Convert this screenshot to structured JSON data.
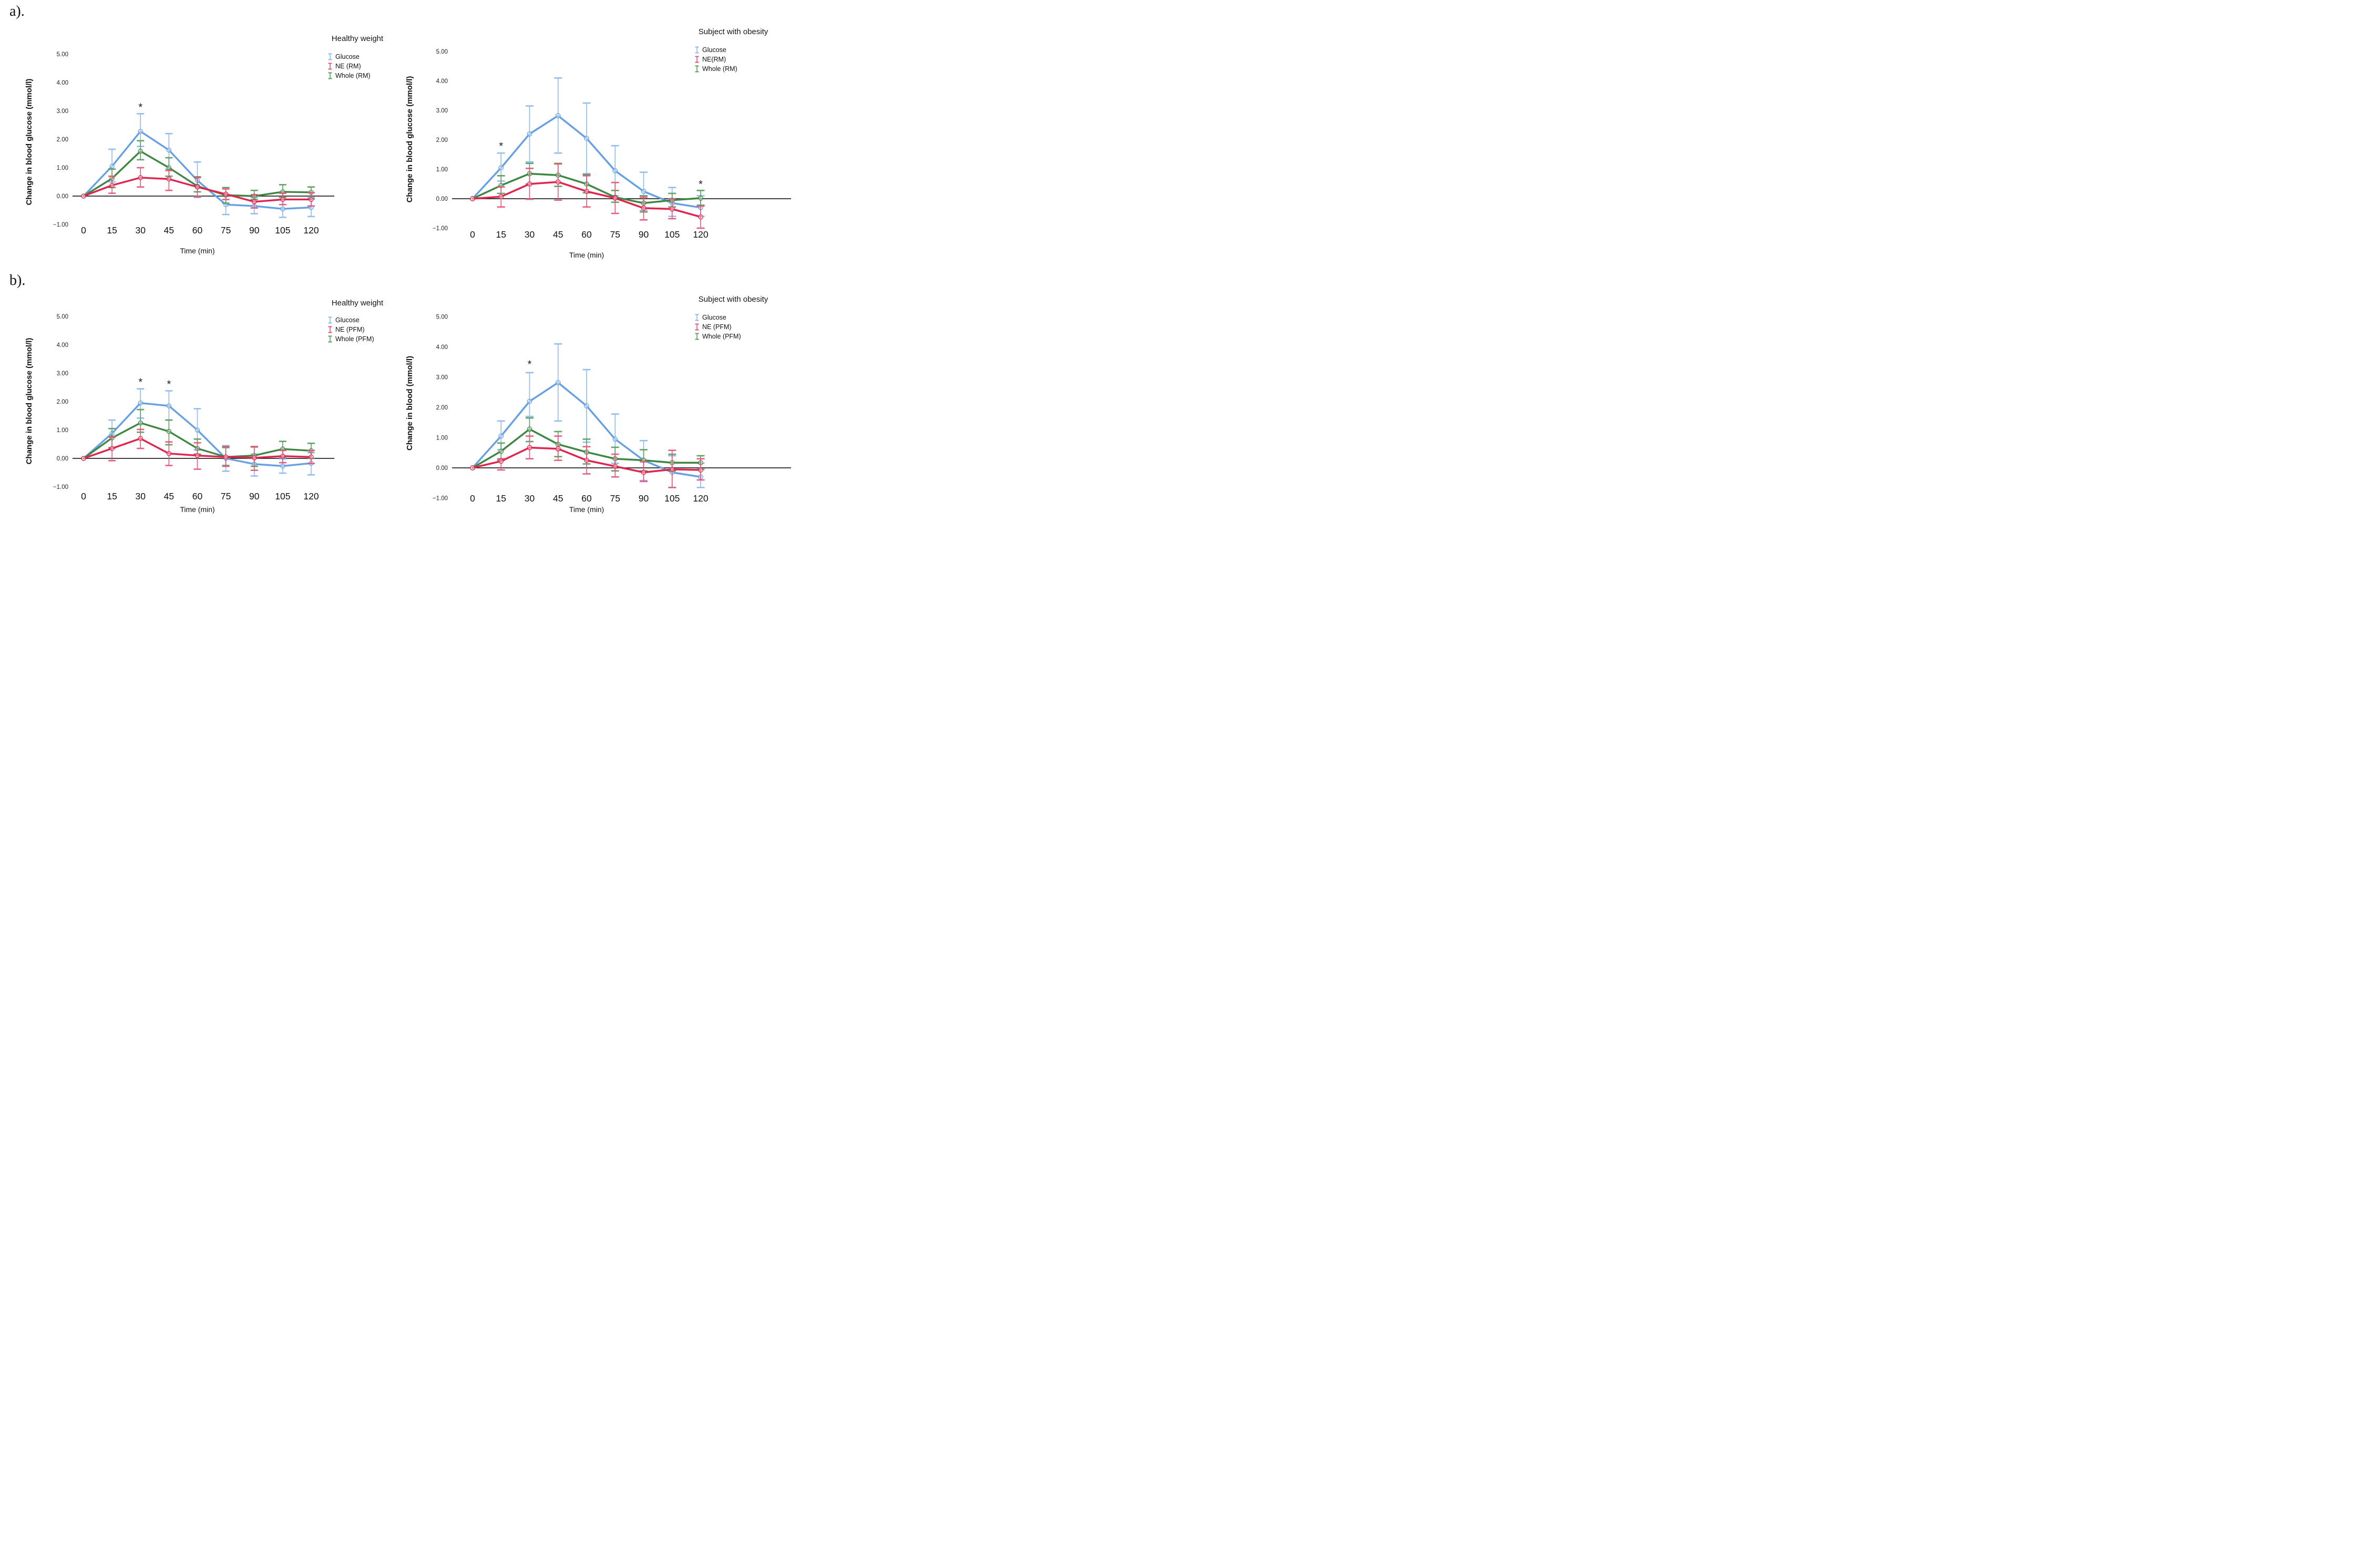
{
  "page": {
    "panel_a": "a).",
    "panel_b": "b)."
  },
  "colors": {
    "glucose_line": "#66A0E2",
    "glucose_error": "#8CBBF0",
    "ne_line": "#E0234F",
    "ne_error": "#E8557C",
    "whole_line": "#3E8742",
    "whole_error": "#58A05C",
    "zero_line": "#000000",
    "text": "#111111"
  },
  "chart_data": [
    {
      "type": "line",
      "panel": "a",
      "title": "Healthy weight",
      "xlabel": "Time (min)",
      "ylabel": "Change in blood glucose (mmol/l)",
      "x": [
        0,
        15,
        30,
        45,
        60,
        75,
        90,
        105,
        120
      ],
      "yticks": [
        5,
        4,
        3,
        2,
        1,
        0,
        -1
      ],
      "ytick_labels": [
        "5.00",
        "4.00",
        "3.00",
        "2.00",
        "1.00",
        "0.00",
        "−1.00"
      ],
      "ylim": [
        -1.6,
        5.4
      ],
      "grid": false,
      "zero_line": true,
      "legend_position": "top-right",
      "series": [
        {
          "name": "Glucose",
          "color": "#66A0E2",
          "error_color": "#8CBBF0",
          "values": [
            0,
            1.05,
            2.28,
            1.62,
            0.55,
            -0.3,
            -0.35,
            -0.45,
            -0.4
          ],
          "upper": [
            0,
            1.65,
            2.9,
            2.2,
            1.2,
            0.05,
            -0.05,
            -0.12,
            -0.05
          ],
          "lower": [
            0,
            0.5,
            1.75,
            0.95,
            -0.05,
            -0.65,
            -0.62,
            -0.75,
            -0.72
          ]
        },
        {
          "name": "NE (RM)",
          "color": "#E0234F",
          "error_color": "#E8557C",
          "values": [
            0,
            0.38,
            0.65,
            0.6,
            0.32,
            0.07,
            -0.2,
            -0.12,
            -0.12
          ],
          "upper": [
            0,
            0.7,
            1.0,
            0.9,
            0.65,
            0.25,
            0.05,
            0.1,
            0.12
          ],
          "lower": [
            0,
            0.1,
            0.32,
            0.2,
            -0.02,
            -0.12,
            -0.42,
            -0.3,
            -0.35
          ]
        },
        {
          "name": "Whole (RM)",
          "color": "#3E8742",
          "error_color": "#58A05C",
          "values": [
            0,
            0.62,
            1.58,
            1.0,
            0.35,
            0.03,
            0.0,
            0.15,
            0.13
          ],
          "upper": [
            0,
            0.95,
            1.95,
            1.35,
            0.68,
            0.3,
            0.2,
            0.4,
            0.32
          ],
          "lower": [
            0,
            0.3,
            1.28,
            0.7,
            0.15,
            -0.25,
            -0.12,
            -0.05,
            -0.1
          ]
        }
      ],
      "annotations": [
        {
          "x": 30,
          "y": 3.12,
          "text": "*"
        }
      ]
    },
    {
      "type": "line",
      "panel": "a",
      "title": "Subject with obesity",
      "xlabel": "Time (min)",
      "ylabel": "Change in blood glucose (mmol/l)",
      "x": [
        0,
        15,
        30,
        45,
        60,
        75,
        90,
        105,
        120
      ],
      "yticks": [
        5,
        4,
        3,
        2,
        1,
        0,
        -1
      ],
      "ytick_labels": [
        "5.00",
        "4.00",
        "3.00",
        "2.00",
        "1.00",
        "0.00",
        "−1.00"
      ],
      "ylim": [
        -1.6,
        5.4
      ],
      "grid": false,
      "zero_line": true,
      "legend_position": "top-right",
      "series": [
        {
          "name": "Glucose",
          "color": "#66A0E2",
          "error_color": "#8CBBF0",
          "values": [
            0,
            1.05,
            2.2,
            2.82,
            2.05,
            0.95,
            0.25,
            -0.15,
            -0.3
          ],
          "upper": [
            0,
            1.55,
            3.15,
            4.1,
            3.25,
            1.8,
            0.9,
            0.38,
            0.1
          ],
          "lower": [
            0,
            0.6,
            1.25,
            1.55,
            0.85,
            0.1,
            -0.4,
            -0.6,
            -0.6
          ]
        },
        {
          "name": "NE(RM)",
          "color": "#E0234F",
          "error_color": "#E8557C",
          "values": [
            0,
            0.07,
            0.5,
            0.57,
            0.25,
            0.02,
            -0.32,
            -0.35,
            -0.62
          ],
          "upper": [
            0,
            0.4,
            1.03,
            1.18,
            0.78,
            0.55,
            0.05,
            0.0,
            -0.25
          ],
          "lower": [
            0,
            -0.28,
            -0.02,
            -0.05,
            -0.28,
            -0.5,
            -0.72,
            -0.68,
            -1.0
          ]
        },
        {
          "name": "Whole (RM)",
          "color": "#3E8742",
          "error_color": "#58A05C",
          "values": [
            0,
            0.45,
            0.85,
            0.8,
            0.5,
            0.05,
            -0.15,
            -0.05,
            0.02
          ],
          "upper": [
            0,
            0.78,
            1.2,
            1.2,
            0.82,
            0.28,
            0.1,
            0.18,
            0.28
          ],
          "lower": [
            0,
            0.18,
            0.5,
            0.42,
            0.2,
            -0.12,
            -0.45,
            -0.28,
            -0.22
          ]
        }
      ],
      "annotations": [
        {
          "x": 15,
          "y": 1.78,
          "text": "*"
        },
        {
          "x": 120,
          "y": 0.48,
          "text": "*"
        }
      ]
    },
    {
      "type": "line",
      "panel": "b",
      "title": "Healthy weight",
      "xlabel": "Time (min)",
      "ylabel": "Change in blood glucose (mmol/l)",
      "x": [
        0,
        15,
        30,
        45,
        60,
        75,
        90,
        105,
        120
      ],
      "yticks": [
        5,
        4,
        3,
        2,
        1,
        0,
        -1
      ],
      "ytick_labels": [
        "5.00",
        "4.00",
        "3.00",
        "2.00",
        "1.00",
        "0.00",
        "−1.00"
      ],
      "ylim": [
        -1.6,
        5.4
      ],
      "grid": false,
      "zero_line": true,
      "legend_position": "top-right",
      "series": [
        {
          "name": "Glucose",
          "color": "#66A0E2",
          "error_color": "#8CBBF0",
          "values": [
            0,
            0.88,
            1.95,
            1.85,
            1.0,
            0.0,
            -0.2,
            -0.27,
            -0.17
          ],
          "upper": [
            0,
            1.35,
            2.45,
            2.38,
            1.75,
            0.45,
            0.15,
            -0.02,
            0.2
          ],
          "lower": [
            0,
            0.35,
            1.42,
            1.35,
            0.3,
            -0.45,
            -0.62,
            -0.52,
            -0.58
          ]
        },
        {
          "name": "NE (PFM)",
          "color": "#E0234F",
          "error_color": "#E8557C",
          "values": [
            0,
            0.35,
            0.7,
            0.17,
            0.1,
            0.05,
            0.02,
            0.08,
            0.05
          ],
          "upper": [
            0,
            0.75,
            1.02,
            0.58,
            0.55,
            0.42,
            0.42,
            0.28,
            0.28
          ],
          "lower": [
            0,
            -0.08,
            0.35,
            -0.25,
            -0.38,
            -0.28,
            -0.42,
            -0.15,
            -0.18
          ]
        },
        {
          "name": "Whole (PFM)",
          "color": "#3E8742",
          "error_color": "#58A05C",
          "values": [
            0,
            0.72,
            1.25,
            0.95,
            0.35,
            0.05,
            0.1,
            0.33,
            0.27
          ],
          "upper": [
            0,
            1.05,
            1.72,
            1.35,
            0.68,
            0.38,
            0.4,
            0.6,
            0.53
          ],
          "lower": [
            0,
            0.38,
            0.92,
            0.48,
            0.15,
            -0.25,
            -0.28,
            0.05,
            0.0
          ]
        }
      ],
      "annotations": [
        {
          "x": 30,
          "y": 2.68,
          "text": "*"
        },
        {
          "x": 45,
          "y": 2.6,
          "text": "*"
        }
      ]
    },
    {
      "type": "line",
      "panel": "b",
      "title": "Subject with obesity",
      "xlabel": "Time (min)",
      "ylabel": "Change in blood (mmol/l)",
      "x": [
        0,
        15,
        30,
        45,
        60,
        75,
        90,
        105,
        120
      ],
      "yticks": [
        5,
        4,
        3,
        2,
        1,
        0,
        -1
      ],
      "ytick_labels": [
        "5.00",
        "4.00",
        "3.00",
        "2.00",
        "1.00",
        "0.00",
        "−1.00"
      ],
      "ylim": [
        -1.6,
        5.4
      ],
      "grid": false,
      "zero_line": true,
      "legend_position": "top-right",
      "series": [
        {
          "name": "Glucose",
          "color": "#66A0E2",
          "error_color": "#8CBBF0",
          "values": [
            0,
            1.05,
            2.2,
            2.82,
            2.05,
            0.95,
            0.25,
            -0.15,
            -0.3
          ],
          "upper": [
            0,
            1.55,
            3.15,
            4.1,
            3.25,
            1.78,
            0.9,
            0.4,
            0.15
          ],
          "lower": [
            0,
            0.6,
            1.7,
            1.55,
            0.85,
            0.15,
            -0.42,
            -0.65,
            -0.65
          ]
        },
        {
          "name": "NE (PFM)",
          "color": "#E0234F",
          "error_color": "#E8557C",
          "values": [
            0,
            0.22,
            0.67,
            0.63,
            0.25,
            0.05,
            -0.15,
            -0.05,
            -0.07
          ],
          "upper": [
            0,
            0.3,
            1.05,
            1.05,
            0.7,
            0.45,
            0.2,
            0.58,
            0.3
          ],
          "lower": [
            0,
            -0.07,
            0.3,
            0.25,
            -0.2,
            -0.3,
            -0.45,
            -0.65,
            -0.4
          ]
        },
        {
          "name": "Whole (PFM)",
          "color": "#3E8742",
          "error_color": "#58A05C",
          "values": [
            0,
            0.55,
            1.28,
            0.78,
            0.52,
            0.3,
            0.25,
            0.17,
            0.17
          ],
          "upper": [
            0,
            0.82,
            1.65,
            1.2,
            0.95,
            0.68,
            0.6,
            0.45,
            0.4
          ],
          "lower": [
            0,
            0.25,
            0.87,
            0.37,
            0.13,
            -0.1,
            -0.1,
            -0.1,
            -0.05
          ]
        }
      ],
      "annotations": [
        {
          "x": 30,
          "y": 3.42,
          "text": "*"
        }
      ]
    }
  ]
}
